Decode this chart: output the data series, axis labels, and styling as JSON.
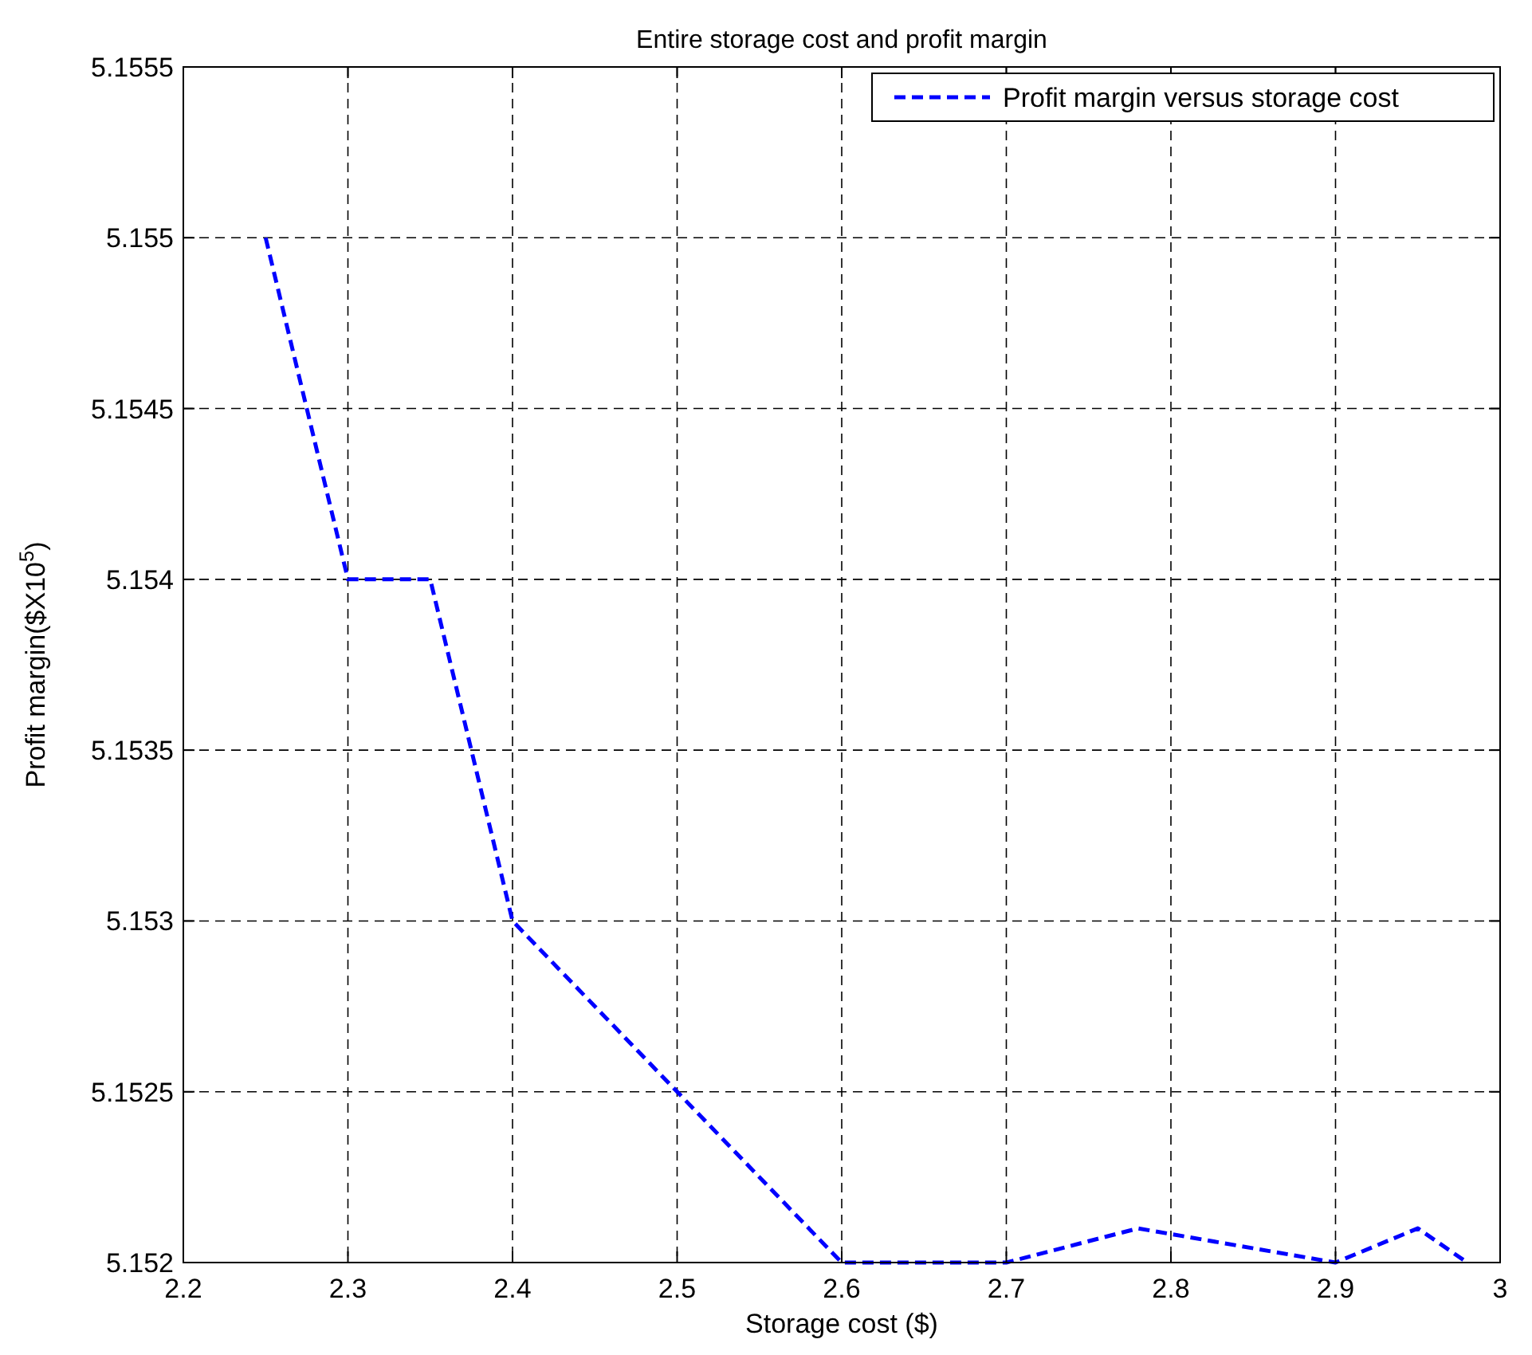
{
  "chart_data": {
    "type": "line",
    "title": "Entire storage cost and profit margin",
    "xlabel": "Storage cost ($)",
    "ylabel": "Profit margin($X10$^{5}$)",
    "x": [
      2.25,
      2.3,
      2.35,
      2.4,
      2.6,
      2.7,
      2.78,
      2.9,
      2.95,
      2.98
    ],
    "series": [
      {
        "name": "Profit margin versus storage cost",
        "color": "#0000ff",
        "line_style": "dashed",
        "marker": "none",
        "values": [
          5.155,
          5.154,
          5.154,
          5.153,
          5.152,
          5.152,
          5.1521,
          5.152,
          5.1521,
          5.152
        ]
      }
    ],
    "xlim": [
      2.2,
      3
    ],
    "xticks": [
      2.2,
      2.3,
      2.4,
      2.5,
      2.6,
      2.7,
      2.8,
      2.9,
      3
    ],
    "ylim": [
      5.152,
      5.1555
    ],
    "yticks": [
      5.152,
      5.1525,
      5.153,
      5.1535,
      5.154,
      5.1545,
      5.155,
      5.1555
    ],
    "grid": true,
    "legend": "top right"
  }
}
